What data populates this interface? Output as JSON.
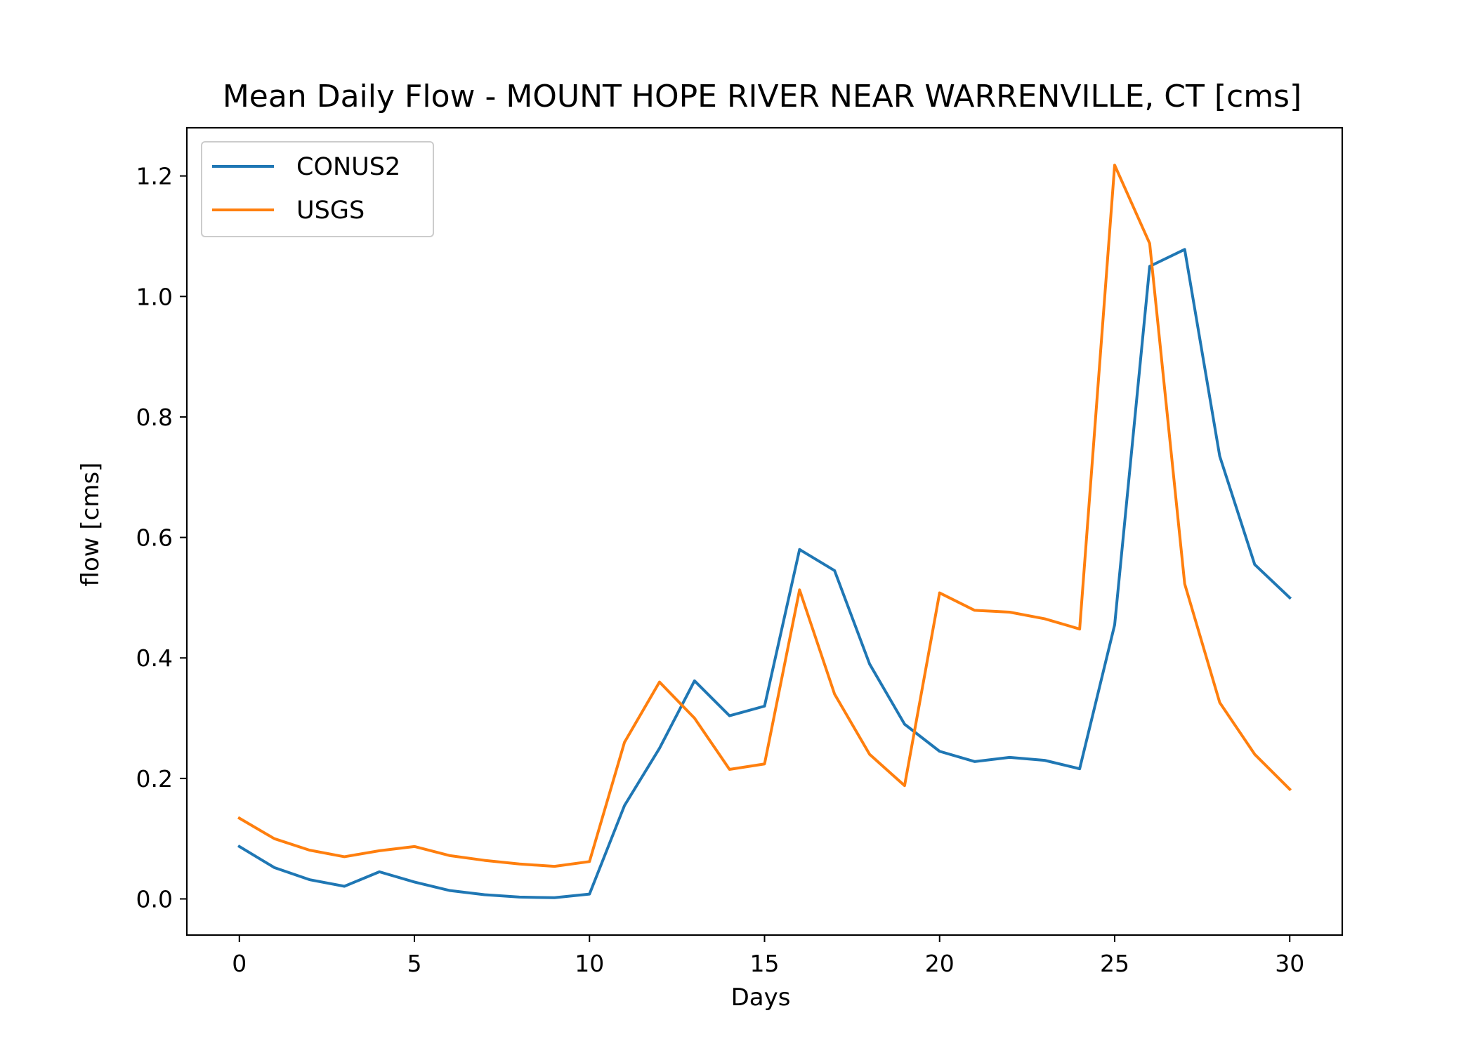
{
  "chart_data": {
    "type": "line",
    "title": "Mean Daily Flow - MOUNT HOPE RIVER NEAR WARRENVILLE, CT [cms]",
    "xlabel": "Days",
    "ylabel": "flow [cms]",
    "xlim": [
      -1.5,
      31.5
    ],
    "ylim": [
      -0.06,
      1.28
    ],
    "xticks": [
      0,
      5,
      10,
      15,
      20,
      25,
      30
    ],
    "xtick_labels": [
      "0",
      "5",
      "10",
      "15",
      "20",
      "25",
      "30"
    ],
    "yticks": [
      0.0,
      0.2,
      0.4,
      0.6,
      0.8,
      1.0,
      1.2
    ],
    "ytick_labels": [
      "0.0",
      "0.2",
      "0.4",
      "0.6",
      "0.8",
      "1.0",
      "1.2"
    ],
    "grid": false,
    "legend_position": "top-left",
    "x": [
      0,
      1,
      2,
      3,
      4,
      5,
      6,
      7,
      8,
      9,
      10,
      11,
      12,
      13,
      14,
      15,
      16,
      17,
      18,
      19,
      20,
      21,
      22,
      23,
      24,
      25,
      26,
      27,
      28,
      29,
      30
    ],
    "series": [
      {
        "name": "CONUS2",
        "color": "#1f77b4",
        "values": [
          0.087,
          0.052,
          0.032,
          0.021,
          0.045,
          0.028,
          0.014,
          0.007,
          0.003,
          0.002,
          0.008,
          0.155,
          0.25,
          0.362,
          0.304,
          0.32,
          0.58,
          0.545,
          0.39,
          0.29,
          0.245,
          0.228,
          0.235,
          0.23,
          0.216,
          0.455,
          1.05,
          1.078,
          0.735,
          0.555,
          0.5
        ]
      },
      {
        "name": "USGS",
        "color": "#ff7f0e",
        "values": [
          0.134,
          0.1,
          0.081,
          0.07,
          0.08,
          0.087,
          0.072,
          0.064,
          0.058,
          0.054,
          0.062,
          0.26,
          0.36,
          0.3,
          0.215,
          0.224,
          0.513,
          0.34,
          0.24,
          0.188,
          0.508,
          0.479,
          0.476,
          0.465,
          0.448,
          1.218,
          1.088,
          0.523,
          0.326,
          0.24,
          0.182
        ]
      }
    ]
  }
}
